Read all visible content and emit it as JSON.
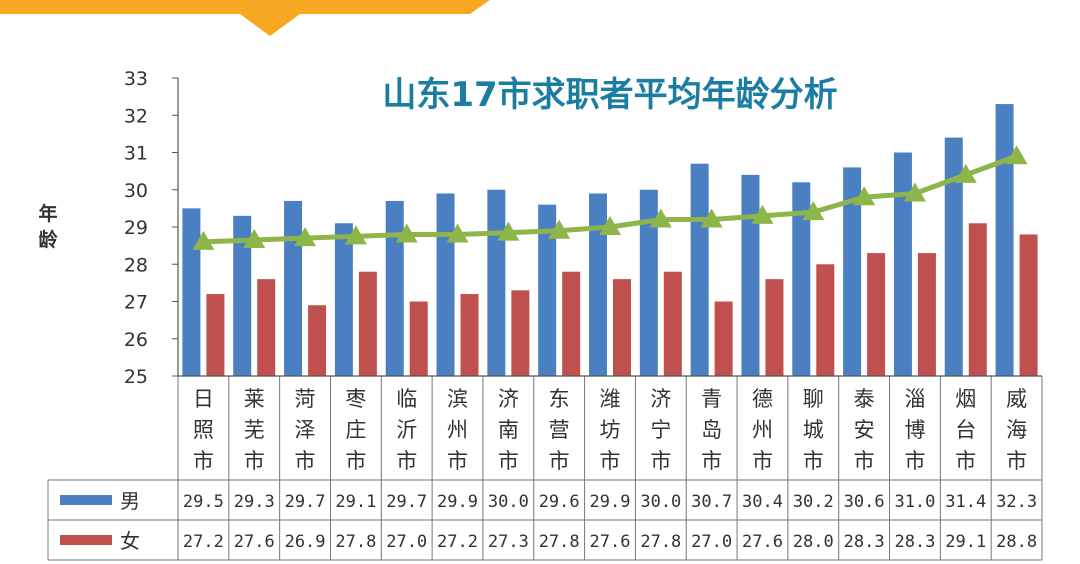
{
  "chart_data": {
    "type": "bar",
    "title": "山东17市求职者平均年龄分析",
    "ylabel": "年龄",
    "ylim": [
      25,
      33
    ],
    "yticks": [
      25,
      26,
      27,
      28,
      29,
      30,
      31,
      32,
      33
    ],
    "categories": [
      "日照市",
      "莱芜市",
      "菏泽市",
      "枣庄市",
      "临沂市",
      "滨州市",
      "济南市",
      "东营市",
      "潍坊市",
      "济宁市",
      "青岛市",
      "德州市",
      "聊城市",
      "泰安市",
      "淄博市",
      "烟台市",
      "威海市"
    ],
    "series": [
      {
        "name": "男",
        "kind": "bar",
        "color": "#4a7fc1",
        "values": [
          29.5,
          29.3,
          29.7,
          29.1,
          29.7,
          29.9,
          30.0,
          29.6,
          29.9,
          30.0,
          30.7,
          30.4,
          30.2,
          30.6,
          31.0,
          31.4,
          32.3
        ],
        "labels": [
          "29.5",
          "29.3",
          "29.7",
          "29.1",
          "29.7",
          "29.9",
          "30.0",
          "29.6",
          "29.9",
          "30.0",
          "30.7",
          "30.4",
          "30.2",
          "30.6",
          "31.0",
          "31.4",
          "32.3"
        ]
      },
      {
        "name": "女",
        "kind": "bar",
        "color": "#c0504d",
        "values": [
          27.2,
          27.6,
          26.9,
          27.8,
          27.0,
          27.2,
          27.3,
          27.8,
          27.6,
          27.8,
          27.0,
          27.6,
          28.0,
          28.3,
          28.3,
          29.1,
          28.8
        ],
        "labels": [
          "27.2",
          "27.6",
          "26.9",
          "27.8",
          "27.0",
          "27.2",
          "27.3",
          "27.8",
          "27.6",
          "27.8",
          "27.0",
          "27.6",
          "28.0",
          "28.3",
          "28.3",
          "29.1",
          "28.8"
        ]
      },
      {
        "name": "",
        "kind": "line",
        "marker": "triangle",
        "color": "#8db54a",
        "values": [
          28.6,
          28.65,
          28.7,
          28.75,
          28.8,
          28.8,
          28.85,
          28.9,
          29.0,
          29.2,
          29.2,
          29.3,
          29.4,
          29.8,
          29.9,
          30.4,
          30.9
        ]
      }
    ],
    "table": true,
    "grid": false
  },
  "colors": {
    "banner": "#f7a823",
    "title": "#1a7da1",
    "axis": "#333333"
  }
}
